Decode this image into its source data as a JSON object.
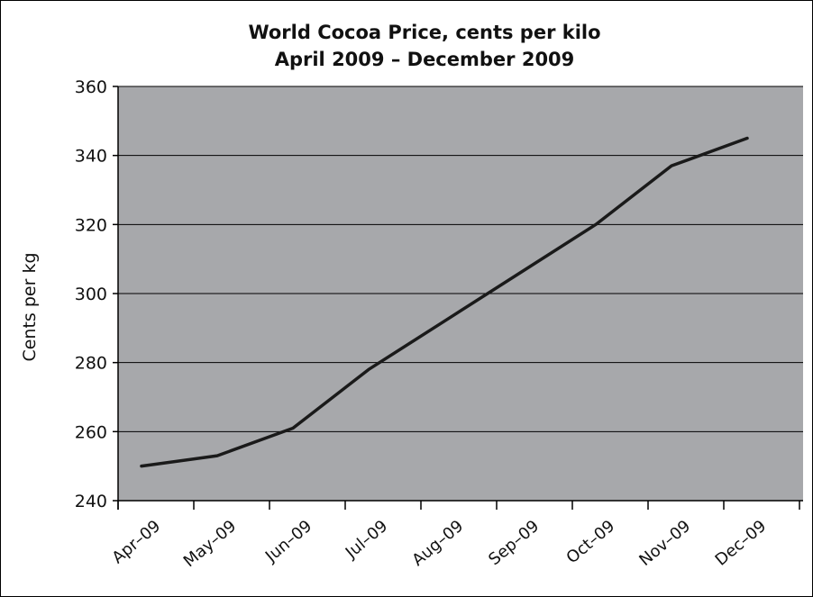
{
  "chart_data": {
    "type": "line",
    "title": "World Cocoa Price, cents per kilo",
    "subtitle": "April 2009 – December 2009",
    "xlabel": "",
    "ylabel": "Cents per kg",
    "categories": [
      "Apr–09",
      "May–09",
      "Jun–09",
      "Jul–09",
      "Aug–09",
      "Sep–09",
      "Oct–09",
      "Nov–09",
      "Dec–09"
    ],
    "series": [
      {
        "name": "Cocoa price",
        "values": [
          250,
          253,
          261,
          278,
          292,
          306,
          320,
          337,
          345
        ]
      }
    ],
    "ylim": [
      240,
      360
    ],
    "yticks": [
      240,
      260,
      280,
      300,
      320,
      340,
      360
    ],
    "grid": true,
    "legend": "none",
    "colors": {
      "plot_bg": "#a7a8ab",
      "line": "#1a1a1a",
      "grid": "#000000"
    }
  }
}
